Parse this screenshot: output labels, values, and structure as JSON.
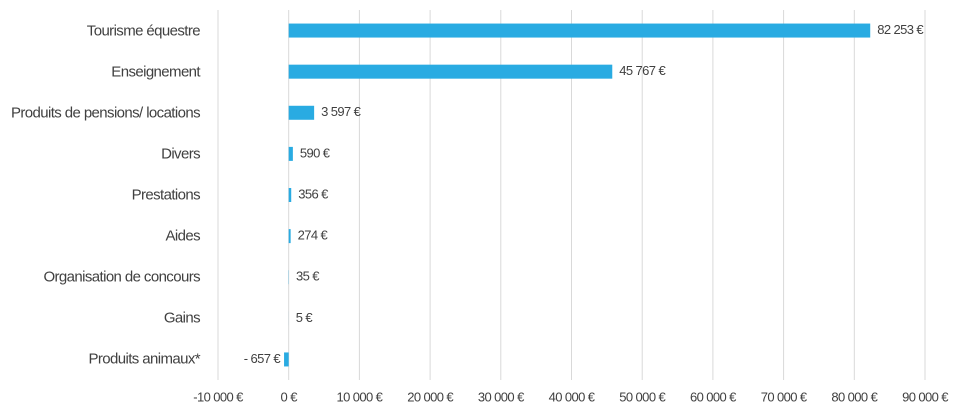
{
  "chart_data": {
    "type": "bar",
    "orientation": "horizontal",
    "categories": [
      "Tourisme équestre",
      "Enseignement",
      "Produits de pensions/ locations",
      "Divers",
      "Prestations",
      "Aides",
      "Organisation de concours",
      "Gains",
      "Produits animaux*"
    ],
    "values": [
      82253,
      45767,
      3597,
      590,
      356,
      274,
      35,
      5,
      -657
    ],
    "value_labels": [
      "82 253 €",
      "45 767 €",
      "3 597 €",
      "590 €",
      "356 €",
      "274 €",
      "35 €",
      "5 €",
      "- 657 €"
    ],
    "color": "#29abe2",
    "xlim": [
      -10000,
      90000
    ],
    "xticks": [
      {
        "value": -10000,
        "label": "-10 000 €"
      },
      {
        "value": 0,
        "label": "0 €"
      },
      {
        "value": 10000,
        "label": "10 000 €"
      },
      {
        "value": 20000,
        "label": "20 000 €"
      },
      {
        "value": 30000,
        "label": "30 000 €"
      },
      {
        "value": 40000,
        "label": "40 000 €"
      },
      {
        "value": 50000,
        "label": "50 000 €"
      },
      {
        "value": 60000,
        "label": "60 000 €"
      },
      {
        "value": 70000,
        "label": "70 000 €"
      },
      {
        "value": 80000,
        "label": "80 000 €"
      },
      {
        "value": 90000,
        "label": "90 000 €"
      }
    ],
    "grid": true
  }
}
